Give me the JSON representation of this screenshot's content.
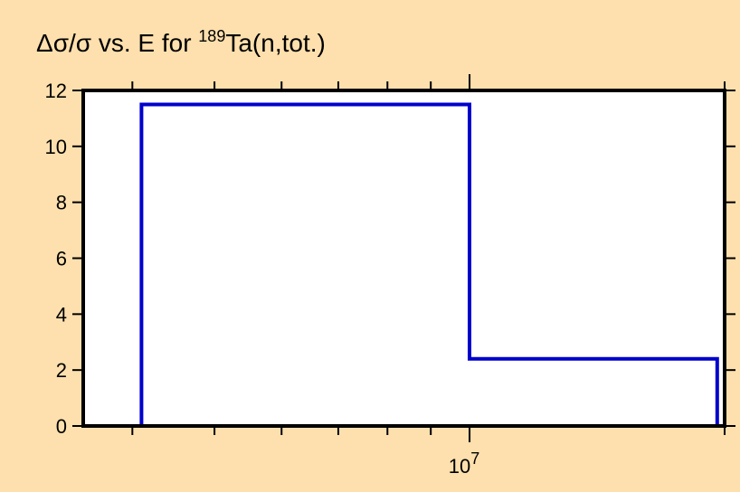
{
  "colors": {
    "background": "#fde0ad",
    "plot_area": "#ffffff",
    "frame": "#000000",
    "series": "#0000cc"
  },
  "chart_data": {
    "type": "line",
    "title": {
      "prefix": "Δσ/σ vs. E for ",
      "superscript": "189",
      "suffix": "Ta(n,tot.)"
    },
    "x_scale": "log",
    "xlim": [
      3500000,
      20000000
    ],
    "ylim": [
      0,
      12
    ],
    "y_ticks": [
      0,
      2,
      4,
      6,
      8,
      10,
      12
    ],
    "x_major_ticks": [
      {
        "value": 10000000,
        "base": "10",
        "exponent": "7"
      }
    ],
    "x_minor_ticks": [
      4000000,
      5000000,
      6000000,
      7000000,
      8000000,
      9000000,
      20000000
    ],
    "grid": false,
    "legend": "none",
    "series": [
      {
        "step": true,
        "points": [
          {
            "x": 4100000,
            "y": 0
          },
          {
            "x": 4100000,
            "y": 11.5
          },
          {
            "x": 10000000,
            "y": 11.5
          },
          {
            "x": 10000000,
            "y": 2.4
          },
          {
            "x": 19600000,
            "y": 2.4
          },
          {
            "x": 19600000,
            "y": 0
          }
        ]
      }
    ]
  }
}
